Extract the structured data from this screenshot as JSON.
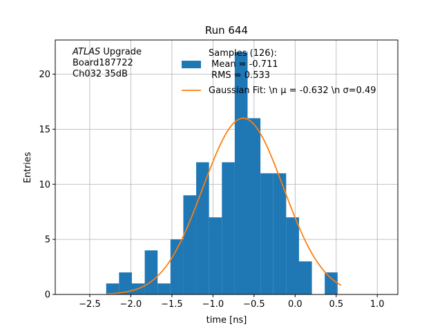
{
  "chart_data": {
    "type": "bar",
    "title": "Run 644",
    "xlabel": "time [ns]",
    "ylabel": "Entries",
    "xlim": [
      -2.92,
      1.25
    ],
    "ylim": [
      0,
      23.1
    ],
    "grid": true,
    "xticks": [
      -2.5,
      -2.0,
      -1.5,
      -1.0,
      -0.5,
      0.0,
      0.5,
      1.0
    ],
    "xtick_labels": [
      "−2.5",
      "−2.0",
      "−1.5",
      "−1.0",
      "−0.5",
      "0.0",
      "0.5",
      "1.0"
    ],
    "yticks": [
      0,
      5,
      10,
      15,
      20
    ],
    "ytick_labels": [
      "0",
      "5",
      "10",
      "15",
      "20"
    ],
    "annotation": {
      "lines": [
        {
          "italic": "ATLAS",
          "rest": " Upgrade"
        },
        {
          "italic": "",
          "rest": " Board187722"
        },
        {
          "italic": "",
          "rest": " Ch032 35dB"
        }
      ]
    },
    "legend": {
      "placement": "top-right",
      "histogram_label_lines": [
        "Samples (126):",
        " Mean = -0.711",
        " RMS = 0.533"
      ],
      "fit_label": "Gaussian Fit: \\n μ = -0.632 \\n σ=0.49"
    },
    "histogram": {
      "bin_edges": [
        -2.3,
        -2.1435,
        -1.987,
        -1.8305,
        -1.674,
        -1.5175,
        -1.361,
        -1.2045,
        -1.048,
        -0.8915,
        -0.735,
        -0.5785,
        -0.422,
        -0.2655,
        -0.109,
        0.0475,
        0.204,
        0.3605,
        0.517
      ],
      "counts": [
        1,
        2,
        1,
        4,
        1,
        5,
        9,
        12,
        7,
        12,
        22,
        16,
        11,
        11,
        7,
        3,
        0,
        2
      ],
      "color": "#1f77b4"
    },
    "fit": {
      "mu": -0.632,
      "sigma": 0.49,
      "amplitude": 16.0,
      "x_range": [
        -2.3,
        0.56
      ],
      "color": "#ff7f0e"
    }
  }
}
